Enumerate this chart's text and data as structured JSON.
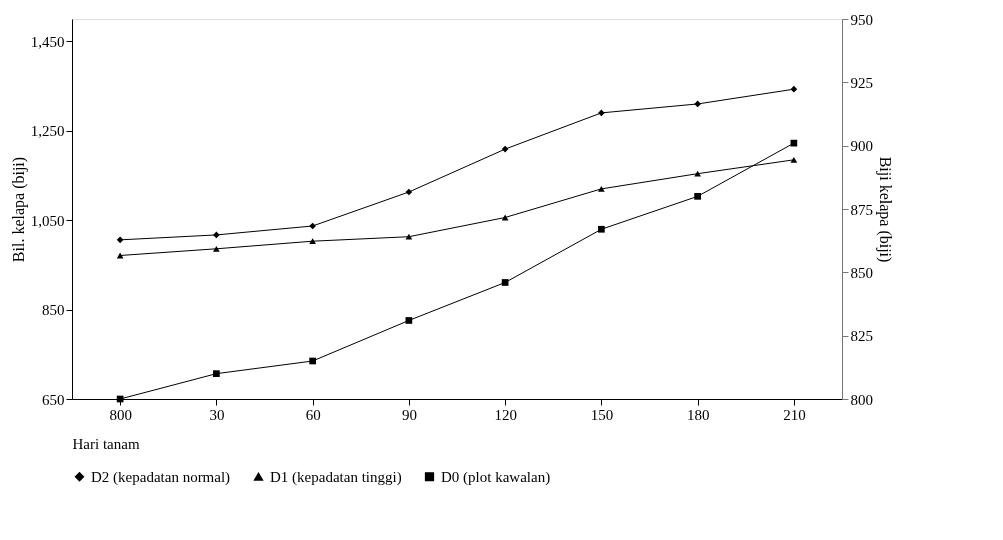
{
  "chart_data": {
    "type": "line",
    "xlabel": "Hari tanam",
    "ylabel": "Bil. kelapa (biji)",
    "y2label": "Biji kelapa (biji)",
    "categories": [
      "800",
      "30",
      "60",
      "90",
      "120",
      "150",
      "180",
      "210"
    ],
    "series": [
      {
        "name": "D2 (kepadatan normal)",
        "color": "#000000",
        "marker": "diamond",
        "values": [
          1006,
          1017,
          1037,
          1113,
          1209,
          1290,
          1310,
          1343
        ]
      },
      {
        "name": "D1 (kepadatan tinggi)",
        "color": "#000000",
        "marker": "triangle",
        "values": [
          971,
          986,
          1003,
          1013,
          1056,
          1120,
          1154,
          1185
        ]
      },
      {
        "name": "D0 (plot kawalan)",
        "color": "#000000",
        "marker": "square",
        "axis": "y2",
        "values": [
          800,
          810,
          815,
          831,
          846,
          867,
          880,
          901
        ]
      }
    ],
    "ylim": [
      650,
      1500
    ],
    "yticks": [
      {
        "value": 650,
        "label": "650"
      },
      {
        "value": 850,
        "label": "850"
      },
      {
        "value": 1050,
        "label": "1,050"
      },
      {
        "value": 1250,
        "label": "1,250"
      },
      {
        "value": 1450,
        "label": "1,450"
      }
    ],
    "y2lim": [
      800,
      950
    ],
    "y2ticks": [
      800,
      825,
      850,
      875,
      900,
      925,
      950
    ],
    "grid": false,
    "legend": "bottom",
    "line_style": "solid"
  }
}
